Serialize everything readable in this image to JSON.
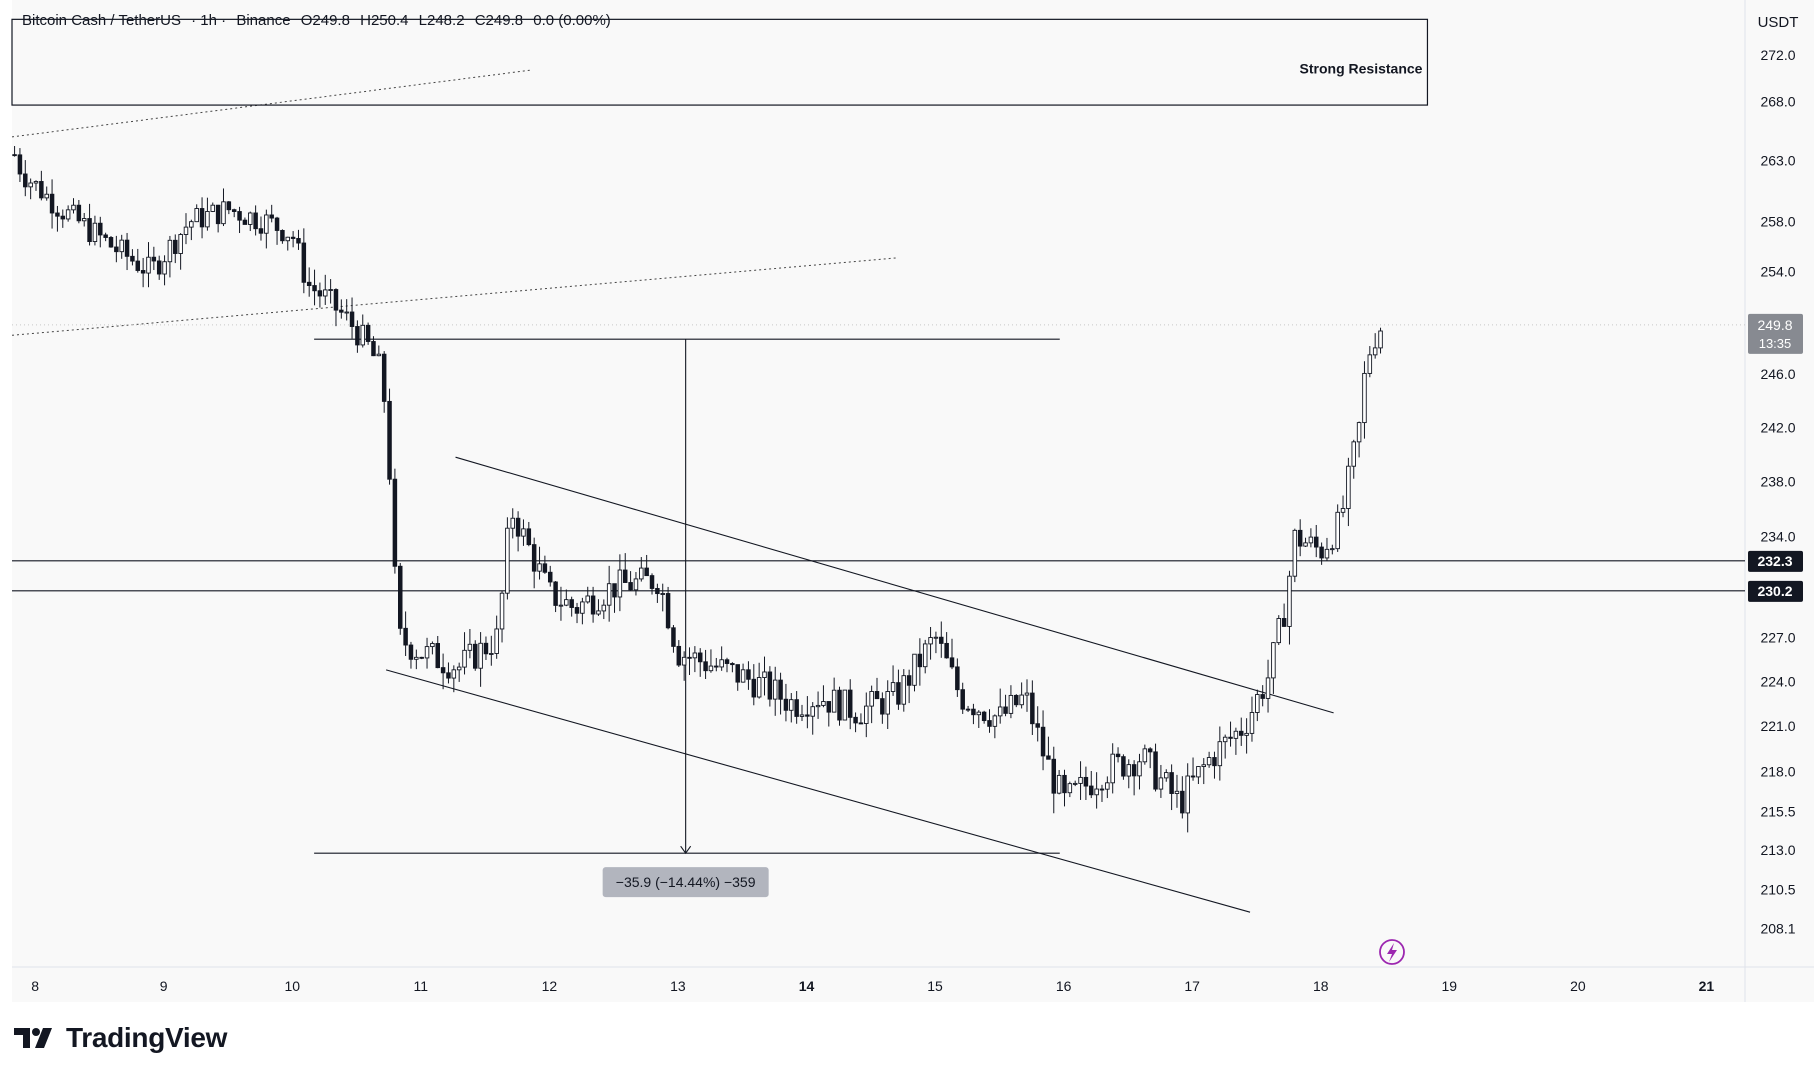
{
  "header": {
    "symbol": "Bitcoin Cash / TetherUS",
    "interval": "· 1h ·",
    "exchange": "Binance",
    "open": "O249.8",
    "high": "H250.4",
    "low": "L248.2",
    "close": "C249.8",
    "change": "0.0 (0.00%)"
  },
  "currency_label": "USDT",
  "price_tag": {
    "price": "249.8",
    "countdown": "13:35"
  },
  "level_tags": [
    {
      "label": "232.3"
    },
    {
      "label": "230.2"
    }
  ],
  "annotations": {
    "resistance_label": "Strong Resistance",
    "measure_label": "−35.9 (−14.44%) −359"
  },
  "brand": {
    "name": "TradingView"
  },
  "colors": {
    "background": "#f9f9f9",
    "candle": "#131722",
    "grid_dotted": "#c8c8c8",
    "axis_text": "#131722",
    "price_tag_bg": "#878a91",
    "level_tag_bg": "#131722",
    "measure_bg": "#b2b5be",
    "lightning": "#9c27b0"
  },
  "chart_data": {
    "type": "candlestick",
    "title": "Bitcoin Cash / TetherUS · 1h · Binance",
    "xlabel": "",
    "ylabel": "",
    "x_ticks": [
      "8",
      "9",
      "10",
      "11",
      "12",
      "13",
      "14",
      "15",
      "16",
      "17",
      "18",
      "19",
      "20",
      "21"
    ],
    "x_tick_values": [
      8,
      9,
      10,
      11,
      12,
      13,
      14,
      15,
      16,
      17,
      18,
      19,
      20,
      21
    ],
    "y_ticks": [
      "272.0",
      "268.0",
      "263.0",
      "258.0",
      "254.0",
      "246.0",
      "242.0",
      "238.0",
      "234.0",
      "227.0",
      "224.0",
      "221.0",
      "218.0",
      "215.5",
      "213.0",
      "210.5",
      "208.1"
    ],
    "y_tick_values": [
      272.0,
      268.0,
      263.0,
      258.0,
      254.0,
      246.0,
      242.0,
      238.0,
      234.0,
      227.0,
      224.0,
      221.0,
      218.0,
      215.5,
      213.0,
      210.5,
      208.1
    ],
    "xlim": [
      7.82,
      21.3
    ],
    "ylim": [
      207.2,
      275.1
    ],
    "price_key": [
      {
        "price": 207.2,
        "frac": 1.0
      },
      {
        "price": 208.1,
        "frac": 0.96
      },
      {
        "price": 210.5,
        "frac": 0.92
      },
      {
        "price": 213.0,
        "frac": 0.879
      },
      {
        "price": 215.5,
        "frac": 0.839
      },
      {
        "price": 218.0,
        "frac": 0.798
      },
      {
        "price": 221.0,
        "frac": 0.751
      },
      {
        "price": 224.0,
        "frac": 0.705
      },
      {
        "price": 227.0,
        "frac": 0.659
      },
      {
        "price": 230.2,
        "frac": 0.611
      },
      {
        "price": 232.3,
        "frac": 0.58
      },
      {
        "price": 234.0,
        "frac": 0.555
      },
      {
        "price": 238.0,
        "frac": 0.498
      },
      {
        "price": 242.0,
        "frac": 0.442
      },
      {
        "price": 246.0,
        "frac": 0.387
      },
      {
        "price": 249.8,
        "frac": 0.336
      },
      {
        "price": 254.0,
        "frac": 0.281
      },
      {
        "price": 258.0,
        "frac": 0.229
      },
      {
        "price": 263.0,
        "frac": 0.166
      },
      {
        "price": 268.0,
        "frac": 0.105
      },
      {
        "price": 272.0,
        "frac": 0.057
      },
      {
        "price": 275.1,
        "frac": 0.02
      }
    ],
    "price_path": [
      [
        7.82,
        264
      ],
      [
        7.9,
        262
      ],
      [
        8.2,
        259
      ],
      [
        8.6,
        256
      ],
      [
        8.9,
        254
      ],
      [
        9.2,
        258
      ],
      [
        9.5,
        259
      ],
      [
        9.8,
        258
      ],
      [
        10.0,
        257
      ],
      [
        10.12,
        253
      ],
      [
        10.25,
        252
      ],
      [
        10.45,
        250
      ],
      [
        10.6,
        248
      ],
      [
        10.7,
        246
      ],
      [
        10.75,
        240
      ],
      [
        10.82,
        227
      ],
      [
        11.0,
        226
      ],
      [
        11.3,
        225
      ],
      [
        11.6,
        227
      ],
      [
        11.7,
        236
      ],
      [
        11.85,
        233
      ],
      [
        12.0,
        230
      ],
      [
        12.2,
        229
      ],
      [
        12.5,
        230.5
      ],
      [
        12.85,
        231
      ],
      [
        13.0,
        226
      ],
      [
        13.3,
        225
      ],
      [
        13.6,
        224
      ],
      [
        13.9,
        222.5
      ],
      [
        14.1,
        223
      ],
      [
        14.4,
        222
      ],
      [
        14.7,
        223
      ],
      [
        15.0,
        227
      ],
      [
        15.2,
        223
      ],
      [
        15.5,
        221.5
      ],
      [
        15.7,
        223
      ],
      [
        15.85,
        219
      ],
      [
        16.0,
        216
      ],
      [
        16.3,
        218
      ],
      [
        16.6,
        219
      ],
      [
        16.9,
        216
      ],
      [
        17.15,
        219
      ],
      [
        17.4,
        221
      ],
      [
        17.6,
        224.5
      ],
      [
        17.72,
        229
      ],
      [
        17.8,
        234
      ],
      [
        18.0,
        233
      ],
      [
        18.15,
        235
      ],
      [
        18.32,
        243
      ],
      [
        18.35,
        247
      ],
      [
        18.45,
        249.6
      ],
      [
        18.5,
        249.8
      ]
    ],
    "horizontal_levels": [
      {
        "label": "232.3",
        "price": 232.3,
        "x_from": 7.82,
        "x_to": 21.3
      },
      {
        "label": "230.2",
        "price": 230.2,
        "x_from": 7.82,
        "x_to": 21.3
      }
    ],
    "resistance_zone": {
      "label": "Strong Resistance",
      "x_from": 7.82,
      "x_to": 18.83,
      "price_from": 267.7,
      "price_to": 275.1
    },
    "channel_lines": [
      {
        "from": [
          11.27,
          239.8
        ],
        "to": [
          18.1,
          221.9
        ]
      },
      {
        "from": [
          10.73,
          224.8
        ],
        "to": [
          17.45,
          209.1
        ]
      }
    ],
    "dotted_trendlines": [
      {
        "from": [
          7.82,
          265.0
        ],
        "to": [
          11.85,
          270.7
        ]
      },
      {
        "from": [
          7.82,
          249.0
        ],
        "to": [
          14.7,
          255.1
        ]
      }
    ],
    "measure_tool": {
      "label": "−35.9 (−14.44%) −359",
      "start_price": 248.7,
      "end_price": 212.8,
      "x": 13.06,
      "top_x_from": 10.17,
      "top_x_to": 15.97,
      "bottom_x_from": 10.17,
      "bottom_x_to": 15.97
    },
    "last_price": 249.8
  }
}
